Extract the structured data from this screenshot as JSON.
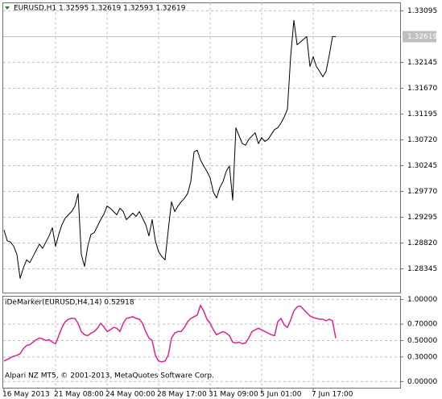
{
  "chart_data": [
    {
      "type": "line",
      "title": "EURUSD,H1  1.32595 1.32619 1.32593 1.32619",
      "color": "#000000",
      "values": [
        1.2906,
        1.2886,
        1.2884,
        1.2876,
        1.2861,
        1.2817,
        1.2836,
        1.2851,
        1.2846,
        1.2857,
        1.2869,
        1.288,
        1.2872,
        1.2884,
        1.2895,
        1.291,
        1.2876,
        1.2898,
        1.2916,
        1.2928,
        1.2934,
        1.294,
        1.295,
        1.2973,
        1.2861,
        1.2839,
        1.2876,
        1.2898,
        1.2901,
        1.2913,
        1.2925,
        1.2935,
        1.295,
        1.2946,
        1.294,
        1.2934,
        1.2946,
        1.294,
        1.2925,
        1.2931,
        1.2937,
        1.2931,
        1.294,
        1.2928,
        1.2916,
        1.2895,
        1.2925,
        1.2886,
        1.2866,
        1.2857,
        1.2851,
        1.2906,
        1.2958,
        1.294,
        1.295,
        1.2958,
        1.2964,
        1.2973,
        1.2995,
        1.305,
        1.3053,
        1.3035,
        1.3024,
        1.3014,
        1.3002,
        1.2976,
        1.2965,
        1.2984,
        1.2995,
        1.3014,
        1.3024,
        1.2961,
        1.3094,
        1.3079,
        1.3065,
        1.3062,
        1.3073,
        1.3079,
        1.3085,
        1.3065,
        1.3076,
        1.3069,
        1.3073,
        1.3082,
        1.3091,
        1.3094,
        1.3103,
        1.3114,
        1.3128,
        1.3225,
        1.3292,
        1.3247,
        1.3252,
        1.3257,
        1.3262,
        1.3207,
        1.3225,
        1.3207,
        1.3198,
        1.3188,
        1.3198,
        1.3228,
        1.3262,
        1.3262
      ],
      "current_price": 1.32619,
      "ylim": [
        1.279,
        1.33242
      ],
      "yticks": [
        1.33095,
        1.32145,
        {
          "value": 1.3167,
          "label": "1.31670"
        },
        1.31195,
        {
          "value": 1.3072,
          "label": "1.30720"
        },
        1.30245,
        {
          "value": 1.2977,
          "label": "1.29770"
        },
        1.29295,
        {
          "value": 1.2882,
          "label": "1.28820"
        },
        1.28345
      ],
      "grid": true
    },
    {
      "type": "line",
      "title": "iDeMarker(EURUSD,H4,14) 0.52918",
      "color": "#e0248f",
      "annotation": "Alpari NZ MT5, © 2001-2013, MetaQuotes Software Corp.",
      "values": [
        0.25,
        0.27,
        0.29,
        0.31,
        0.32,
        0.34,
        0.4,
        0.44,
        0.45,
        0.48,
        0.51,
        0.53,
        0.52,
        0.5,
        0.51,
        0.48,
        0.46,
        0.56,
        0.66,
        0.73,
        0.76,
        0.77,
        0.77,
        0.71,
        0.61,
        0.57,
        0.56,
        0.59,
        0.61,
        0.65,
        0.71,
        0.67,
        0.61,
        0.63,
        0.66,
        0.65,
        0.61,
        0.71,
        0.77,
        0.78,
        0.79,
        0.77,
        0.76,
        0.71,
        0.61,
        0.53,
        0.5,
        0.32,
        0.25,
        0.24,
        0.25,
        0.32,
        0.53,
        0.59,
        0.61,
        0.61,
        0.66,
        0.73,
        0.77,
        0.79,
        0.81,
        0.93,
        0.86,
        0.76,
        0.71,
        0.63,
        0.57,
        0.59,
        0.61,
        0.59,
        0.56,
        0.48,
        0.47,
        0.48,
        0.46,
        0.47,
        0.53,
        0.61,
        0.63,
        0.65,
        0.63,
        0.61,
        0.59,
        0.57,
        0.56,
        0.73,
        0.77,
        0.69,
        0.66,
        0.75,
        0.86,
        0.91,
        0.92,
        0.88,
        0.84,
        0.8,
        0.78,
        0.77,
        0.76,
        0.76,
        0.74,
        0.76,
        0.74,
        0.52918
      ],
      "ylim": [
        -0.08,
        1.04
      ],
      "yticks": [
        {
          "value": 1,
          "label": "1.00000"
        },
        {
          "value": 0.7,
          "label": "0.70000"
        },
        {
          "value": 0.5,
          "label": "0.50000"
        },
        {
          "value": 0.3,
          "label": "0.30000"
        },
        {
          "value": 0,
          "label": "0.00000"
        }
      ],
      "xlim": [
        0,
        123
      ],
      "xticks": [
        {
          "value": 0,
          "label": "16 May 2013"
        },
        {
          "value": 16,
          "label": "21 May 08:00"
        },
        {
          "value": 32,
          "label": "24 May 00:00"
        },
        {
          "value": 48,
          "label": "28 May 17:00"
        },
        {
          "value": 64,
          "label": "31 May 09:00"
        },
        {
          "value": 80,
          "label": "5 Jun 01:00"
        },
        {
          "value": 96,
          "label": "7 Jun 17:00"
        }
      ],
      "grid": true
    }
  ]
}
